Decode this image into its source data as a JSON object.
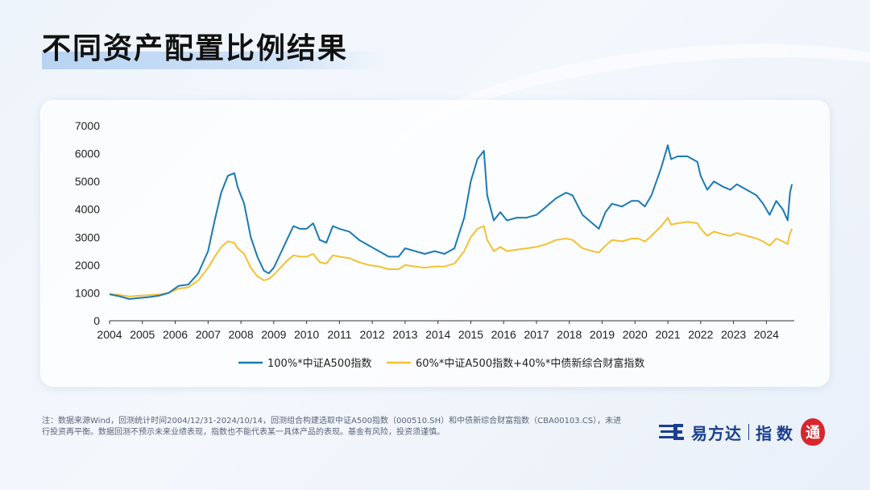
{
  "title": "不同资产配置比例结果",
  "note": "注：数据来源Wind，回测统计时间2004/12/31-2024/10/14，回测组合构建选取中证A500指数（000510.SH）和中债新综合财富指数（CBA00103.CS），未进行投资再平衡。数据回测不预示未来业绩表现，指数也不能代表某一具体产品的表现。基金有风险，投资须谨慎。",
  "logo": {
    "brand": "易方达",
    "sub": "指数",
    "seal": "通"
  },
  "colors": {
    "series1": "#1a7ab5",
    "series2": "#f5c132",
    "axis": "#333333"
  },
  "chart_data": {
    "type": "line",
    "title": "",
    "xlabel": "",
    "ylabel": "",
    "ylim": [
      0,
      7000
    ],
    "xlim": [
      2004.0,
      2024.85
    ],
    "yticks": [
      "0",
      "1000",
      "2000",
      "3000",
      "4000",
      "5000",
      "6000",
      "7000"
    ],
    "xticks": [
      "2004",
      "2005",
      "2006",
      "2007",
      "2008",
      "2009",
      "2010",
      "2011",
      "2012",
      "2013",
      "2014",
      "2015",
      "2016",
      "2017",
      "2018",
      "2019",
      "2020",
      "2021",
      "2022",
      "2023",
      "2024"
    ],
    "legend_position": "bottom",
    "grid": false,
    "series": [
      {
        "name": "100%*中证A500指数",
        "x": [
          2004.0,
          2004.3,
          2004.6,
          2004.9,
          2005.2,
          2005.5,
          2005.8,
          2006.1,
          2006.4,
          2006.7,
          2007.0,
          2007.2,
          2007.4,
          2007.6,
          2007.8,
          2007.9,
          2008.1,
          2008.3,
          2008.5,
          2008.7,
          2008.85,
          2009.0,
          2009.2,
          2009.4,
          2009.6,
          2009.8,
          2010.0,
          2010.2,
          2010.4,
          2010.6,
          2010.8,
          2011.0,
          2011.3,
          2011.6,
          2011.9,
          2012.2,
          2012.5,
          2012.8,
          2013.0,
          2013.3,
          2013.6,
          2013.9,
          2014.2,
          2014.5,
          2014.8,
          2015.0,
          2015.2,
          2015.4,
          2015.5,
          2015.7,
          2015.9,
          2016.1,
          2016.4,
          2016.7,
          2017.0,
          2017.3,
          2017.6,
          2017.9,
          2018.1,
          2018.4,
          2018.7,
          2018.9,
          2019.1,
          2019.3,
          2019.6,
          2019.9,
          2020.1,
          2020.3,
          2020.5,
          2020.8,
          2021.0,
          2021.1,
          2021.3,
          2021.6,
          2021.9,
          2022.0,
          2022.2,
          2022.4,
          2022.7,
          2022.9,
          2023.1,
          2023.4,
          2023.7,
          2023.9,
          2024.1,
          2024.3,
          2024.5,
          2024.65,
          2024.72,
          2024.78
        ],
        "values": [
          950,
          880,
          780,
          820,
          850,
          900,
          1000,
          1250,
          1300,
          1700,
          2500,
          3600,
          4600,
          5200,
          5300,
          4800,
          4200,
          3000,
          2300,
          1800,
          1700,
          1900,
          2400,
          2900,
          3400,
          3300,
          3300,
          3500,
          2900,
          2800,
          3400,
          3300,
          3200,
          2900,
          2700,
          2500,
          2300,
          2300,
          2600,
          2500,
          2400,
          2500,
          2400,
          2600,
          3700,
          5000,
          5800,
          6100,
          4500,
          3600,
          3900,
          3600,
          3700,
          3700,
          3800,
          4100,
          4400,
          4600,
          4500,
          3800,
          3500,
          3300,
          3900,
          4200,
          4100,
          4300,
          4300,
          4100,
          4500,
          5500,
          6300,
          5800,
          5900,
          5900,
          5700,
          5200,
          4700,
          5000,
          4800,
          4700,
          4900,
          4700,
          4500,
          4200,
          3800,
          4300,
          4000,
          3600,
          4600,
          4900
        ]
      },
      {
        "name": "60%*中证A500指数+40%*中债新综合财富指数",
        "x": [
          2004.0,
          2004.3,
          2004.6,
          2004.9,
          2005.2,
          2005.5,
          2005.8,
          2006.1,
          2006.4,
          2006.7,
          2007.0,
          2007.2,
          2007.4,
          2007.6,
          2007.8,
          2007.9,
          2008.1,
          2008.3,
          2008.5,
          2008.7,
          2008.85,
          2009.0,
          2009.2,
          2009.4,
          2009.6,
          2009.8,
          2010.0,
          2010.2,
          2010.4,
          2010.6,
          2010.8,
          2011.0,
          2011.3,
          2011.6,
          2011.9,
          2012.2,
          2012.5,
          2012.8,
          2013.0,
          2013.3,
          2013.6,
          2013.9,
          2014.2,
          2014.5,
          2014.8,
          2015.0,
          2015.2,
          2015.4,
          2015.5,
          2015.7,
          2015.9,
          2016.1,
          2016.4,
          2016.7,
          2017.0,
          2017.3,
          2017.6,
          2017.9,
          2018.1,
          2018.4,
          2018.7,
          2018.9,
          2019.1,
          2019.3,
          2019.6,
          2019.9,
          2020.1,
          2020.3,
          2020.5,
          2020.8,
          2021.0,
          2021.1,
          2021.3,
          2021.6,
          2021.9,
          2022.0,
          2022.2,
          2022.4,
          2022.7,
          2022.9,
          2023.1,
          2023.4,
          2023.7,
          2023.9,
          2024.1,
          2024.3,
          2024.5,
          2024.65,
          2024.72,
          2024.78
        ],
        "values": [
          960,
          930,
          870,
          900,
          920,
          950,
          1000,
          1150,
          1200,
          1450,
          1900,
          2300,
          2650,
          2850,
          2800,
          2600,
          2400,
          1900,
          1600,
          1450,
          1500,
          1650,
          1900,
          2150,
          2350,
          2300,
          2300,
          2400,
          2100,
          2050,
          2350,
          2300,
          2250,
          2100,
          2000,
          1950,
          1850,
          1850,
          2000,
          1950,
          1900,
          1950,
          1950,
          2050,
          2500,
          3000,
          3300,
          3400,
          2900,
          2500,
          2650,
          2500,
          2550,
          2600,
          2650,
          2750,
          2900,
          2950,
          2900,
          2600,
          2500,
          2450,
          2700,
          2900,
          2850,
          2950,
          2950,
          2850,
          3050,
          3400,
          3700,
          3450,
          3500,
          3550,
          3500,
          3300,
          3050,
          3200,
          3100,
          3050,
          3150,
          3050,
          2950,
          2850,
          2700,
          2950,
          2850,
          2750,
          3150,
          3300
        ]
      }
    ]
  }
}
